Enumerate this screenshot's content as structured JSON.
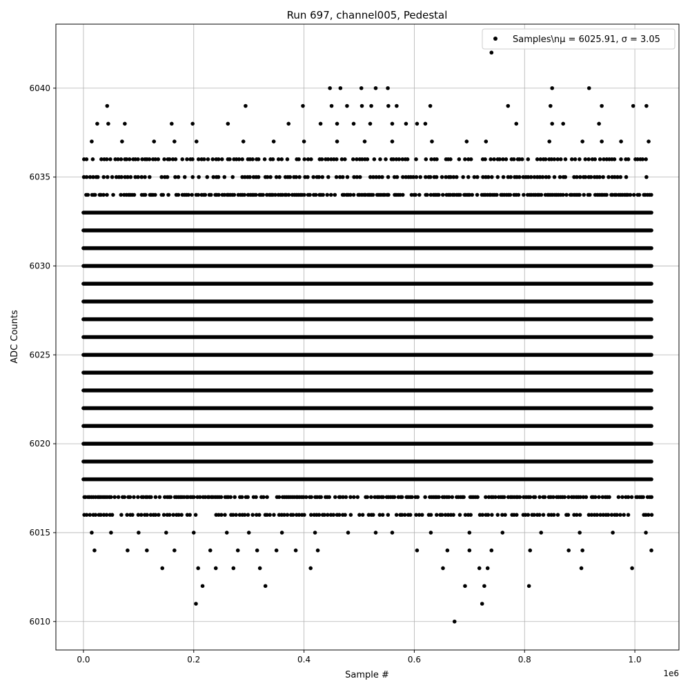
{
  "chart_data": {
    "type": "scatter",
    "title": "Run 697, channel005, Pedestal",
    "xlabel": "Sample #",
    "ylabel": "ADC Counts",
    "x_offset_label": "1e6",
    "xlim": [
      -50000,
      1080000
    ],
    "ylim": [
      6008.4,
      6043.6
    ],
    "x_ticks": [
      0.0,
      0.2,
      0.4,
      0.6,
      0.8,
      1.0
    ],
    "x_tick_labels": [
      "0.0",
      "0.2",
      "0.4",
      "0.6",
      "0.8",
      "1.0"
    ],
    "y_ticks": [
      6010,
      6015,
      6020,
      6025,
      6030,
      6035,
      6040
    ],
    "y_tick_labels": [
      "6010",
      "6015",
      "6020",
      "6025",
      "6030",
      "6035",
      "6040"
    ],
    "grid": true,
    "legend_position": "top-right",
    "marker_color": "#000000",
    "series": [
      {
        "name": "Samples\\n$\\mu$ = 6025.91, $\\sigma$ = 3.05",
        "legend_label": "Samples\\nμ = 6025.91, σ = 3.05",
        "x_range": [
          0,
          1030000
        ],
        "dense_levels": [
          6018,
          6019,
          6020,
          6021,
          6022,
          6023,
          6024,
          6025,
          6026,
          6027,
          6028,
          6029,
          6030,
          6031,
          6032,
          6033
        ],
        "medium_levels": [
          6016,
          6017,
          6034,
          6035,
          6036
        ],
        "sparse_points": [
          {
            "x": 20000,
            "y": 6014
          },
          {
            "x": 80000,
            "y": 6014
          },
          {
            "x": 115000,
            "y": 6014
          },
          {
            "x": 165000,
            "y": 6014
          },
          {
            "x": 230000,
            "y": 6014
          },
          {
            "x": 280000,
            "y": 6014
          },
          {
            "x": 315000,
            "y": 6014
          },
          {
            "x": 350000,
            "y": 6014
          },
          {
            "x": 385000,
            "y": 6014
          },
          {
            "x": 425000,
            "y": 6014
          },
          {
            "x": 605000,
            "y": 6014
          },
          {
            "x": 660000,
            "y": 6014
          },
          {
            "x": 700000,
            "y": 6014
          },
          {
            "x": 740000,
            "y": 6014
          },
          {
            "x": 810000,
            "y": 6014
          },
          {
            "x": 880000,
            "y": 6014
          },
          {
            "x": 905000,
            "y": 6014
          },
          {
            "x": 1030000,
            "y": 6014
          },
          {
            "x": 15000,
            "y": 6015
          },
          {
            "x": 50000,
            "y": 6015
          },
          {
            "x": 100000,
            "y": 6015
          },
          {
            "x": 150000,
            "y": 6015
          },
          {
            "x": 200000,
            "y": 6015
          },
          {
            "x": 260000,
            "y": 6015
          },
          {
            "x": 300000,
            "y": 6015
          },
          {
            "x": 360000,
            "y": 6015
          },
          {
            "x": 420000,
            "y": 6015
          },
          {
            "x": 480000,
            "y": 6015
          },
          {
            "x": 530000,
            "y": 6015
          },
          {
            "x": 560000,
            "y": 6015
          },
          {
            "x": 630000,
            "y": 6015
          },
          {
            "x": 700000,
            "y": 6015
          },
          {
            "x": 760000,
            "y": 6015
          },
          {
            "x": 830000,
            "y": 6015
          },
          {
            "x": 900000,
            "y": 6015
          },
          {
            "x": 960000,
            "y": 6015
          },
          {
            "x": 1020000,
            "y": 6015
          },
          {
            "x": 143000,
            "y": 6013
          },
          {
            "x": 208000,
            "y": 6013
          },
          {
            "x": 240000,
            "y": 6013
          },
          {
            "x": 272000,
            "y": 6013
          },
          {
            "x": 320000,
            "y": 6013
          },
          {
            "x": 412000,
            "y": 6013
          },
          {
            "x": 652000,
            "y": 6013
          },
          {
            "x": 718000,
            "y": 6013
          },
          {
            "x": 733000,
            "y": 6013
          },
          {
            "x": 903000,
            "y": 6013
          },
          {
            "x": 995000,
            "y": 6013
          },
          {
            "x": 216000,
            "y": 6012
          },
          {
            "x": 330000,
            "y": 6012
          },
          {
            "x": 692000,
            "y": 6012
          },
          {
            "x": 727000,
            "y": 6012
          },
          {
            "x": 808000,
            "y": 6012
          },
          {
            "x": 204000,
            "y": 6011
          },
          {
            "x": 723000,
            "y": 6011
          },
          {
            "x": 673000,
            "y": 6010
          },
          {
            "x": 15000,
            "y": 6037
          },
          {
            "x": 70000,
            "y": 6037
          },
          {
            "x": 128000,
            "y": 6037
          },
          {
            "x": 165000,
            "y": 6037
          },
          {
            "x": 205000,
            "y": 6037
          },
          {
            "x": 290000,
            "y": 6037
          },
          {
            "x": 345000,
            "y": 6037
          },
          {
            "x": 400000,
            "y": 6037
          },
          {
            "x": 460000,
            "y": 6037
          },
          {
            "x": 510000,
            "y": 6037
          },
          {
            "x": 560000,
            "y": 6037
          },
          {
            "x": 632000,
            "y": 6037
          },
          {
            "x": 695000,
            "y": 6037
          },
          {
            "x": 730000,
            "y": 6037
          },
          {
            "x": 845000,
            "y": 6037
          },
          {
            "x": 905000,
            "y": 6037
          },
          {
            "x": 940000,
            "y": 6037
          },
          {
            "x": 975000,
            "y": 6037
          },
          {
            "x": 1025000,
            "y": 6037
          },
          {
            "x": 25000,
            "y": 6038
          },
          {
            "x": 45000,
            "y": 6038
          },
          {
            "x": 75000,
            "y": 6038
          },
          {
            "x": 160000,
            "y": 6038
          },
          {
            "x": 198000,
            "y": 6038
          },
          {
            "x": 262000,
            "y": 6038
          },
          {
            "x": 372000,
            "y": 6038
          },
          {
            "x": 430000,
            "y": 6038
          },
          {
            "x": 460000,
            "y": 6038
          },
          {
            "x": 490000,
            "y": 6038
          },
          {
            "x": 520000,
            "y": 6038
          },
          {
            "x": 560000,
            "y": 6038
          },
          {
            "x": 585000,
            "y": 6038
          },
          {
            "x": 605000,
            "y": 6038
          },
          {
            "x": 620000,
            "y": 6038
          },
          {
            "x": 785000,
            "y": 6038
          },
          {
            "x": 850000,
            "y": 6038
          },
          {
            "x": 870000,
            "y": 6038
          },
          {
            "x": 935000,
            "y": 6038
          },
          {
            "x": 43000,
            "y": 6039
          },
          {
            "x": 294000,
            "y": 6039
          },
          {
            "x": 398000,
            "y": 6039
          },
          {
            "x": 450000,
            "y": 6039
          },
          {
            "x": 478000,
            "y": 6039
          },
          {
            "x": 505000,
            "y": 6039
          },
          {
            "x": 522000,
            "y": 6039
          },
          {
            "x": 553000,
            "y": 6039
          },
          {
            "x": 568000,
            "y": 6039
          },
          {
            "x": 629000,
            "y": 6039
          },
          {
            "x": 770000,
            "y": 6039
          },
          {
            "x": 847000,
            "y": 6039
          },
          {
            "x": 940000,
            "y": 6039
          },
          {
            "x": 997000,
            "y": 6039
          },
          {
            "x": 1021000,
            "y": 6039
          },
          {
            "x": 447000,
            "y": 6040
          },
          {
            "x": 466000,
            "y": 6040
          },
          {
            "x": 504000,
            "y": 6040
          },
          {
            "x": 530000,
            "y": 6040
          },
          {
            "x": 552000,
            "y": 6040
          },
          {
            "x": 850000,
            "y": 6040
          },
          {
            "x": 917000,
            "y": 6040
          },
          {
            "x": 740000,
            "y": 6042
          }
        ]
      }
    ]
  }
}
